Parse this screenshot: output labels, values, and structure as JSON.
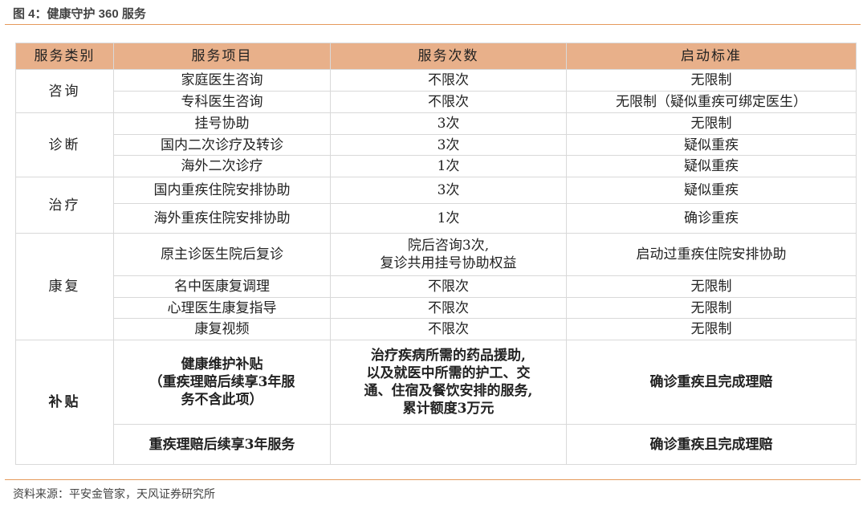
{
  "title": "图 4：健康守护 360 服务",
  "table": {
    "headers": [
      "服务类别",
      "服务项目",
      "服务次数",
      "启动标准"
    ],
    "groups": [
      {
        "category": "咨询",
        "rows": [
          {
            "item": "家庭医生咨询",
            "count": "不限次",
            "criteria": "无限制"
          },
          {
            "item": "专科医生咨询",
            "count": "不限次",
            "criteria": "无限制（疑似重疾可绑定医生）"
          }
        ]
      },
      {
        "category": "诊断",
        "rows": [
          {
            "item": "挂号协助",
            "count": "3次",
            "criteria": "无限制"
          },
          {
            "item": "国内二次诊疗及转诊",
            "count": "3次",
            "criteria": "疑似重疾"
          },
          {
            "item": "海外二次诊疗",
            "count": "1次",
            "criteria": "疑似重疾"
          }
        ]
      },
      {
        "category": "治疗",
        "rows": [
          {
            "item": "国内重疾住院安排协助",
            "count": "3次",
            "criteria": "疑似重疾"
          },
          {
            "item": "海外重疾住院安排协助",
            "count": "1次",
            "criteria": "确诊重疾"
          }
        ]
      },
      {
        "category": "康复",
        "rows": [
          {
            "item": "原主诊医生院后复诊",
            "count_lines": [
              "院后咨询3次,",
              "复诊共用挂号协助权益"
            ],
            "criteria": "启动过重疾住院安排协助"
          },
          {
            "item": "名中医康复调理",
            "count": "不限次",
            "criteria": "无限制"
          },
          {
            "item": "心理医生康复指导",
            "count": "不限次",
            "criteria": "无限制"
          },
          {
            "item": "康复视频",
            "count": "不限次",
            "criteria": "无限制"
          }
        ]
      },
      {
        "category": "补贴",
        "rows": [
          {
            "item_lines": [
              "健康维护补贴",
              "（重疾理赔后续享3年服",
              "务不含此项）"
            ],
            "count_lines": [
              "治疗疾病所需的药品援助,",
              "以及就医中所需的护工、交",
              "通、住宿及餐饮安排的服务,",
              "累计额度3万元"
            ],
            "criteria": "确诊重疾且完成理赔"
          },
          {
            "item": "重疾理赔后续享3年服务",
            "count": "",
            "criteria": "确诊重疾且完成理赔"
          }
        ]
      }
    ]
  },
  "source": "资料来源：平安金管家，天风证券研究所"
}
